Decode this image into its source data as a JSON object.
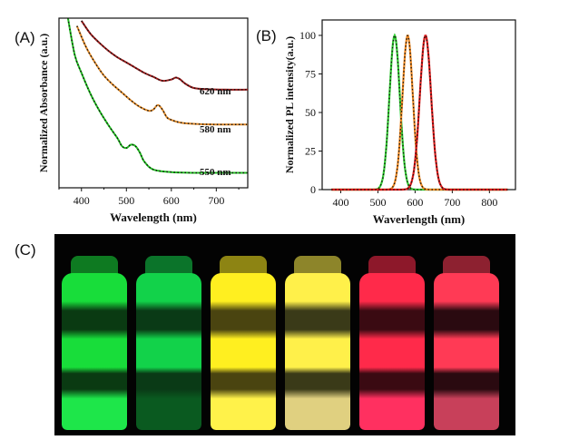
{
  "panels": {
    "a_label": "(A)",
    "b_label": "(B)",
    "c_label": "(C)"
  },
  "chart_data": [
    {
      "type": "line",
      "panel": "A",
      "xlabel": "Wavelength (nm)",
      "ylabel": "Normalized Absorbance (a.u.)",
      "xlim": [
        350,
        770
      ],
      "xticks": [
        400,
        500,
        600,
        700
      ],
      "yticks_shown": false,
      "series": [
        {
          "label": "620 nm",
          "color": "#9b1b1b",
          "x": [
            400,
            420,
            440,
            460,
            480,
            500,
            520,
            540,
            560,
            580,
            600,
            610,
            620,
            630,
            650,
            680,
            720,
            770
          ],
          "y": [
            1.48,
            1.38,
            1.31,
            1.25,
            1.2,
            1.16,
            1.12,
            1.08,
            1.05,
            1.02,
            1.03,
            1.045,
            1.03,
            1.0,
            0.965,
            0.955,
            0.952,
            0.952
          ]
        },
        {
          "label": "580 nm",
          "color": "#e08a2a",
          "x": [
            390,
            410,
            430,
            450,
            470,
            490,
            510,
            530,
            550,
            560,
            570,
            580,
            590,
            600,
            620,
            650,
            700,
            770
          ],
          "y": [
            1.44,
            1.28,
            1.16,
            1.06,
            0.99,
            0.93,
            0.87,
            0.82,
            0.79,
            0.8,
            0.835,
            0.8,
            0.74,
            0.72,
            0.7,
            0.69,
            0.685,
            0.685
          ]
        },
        {
          "label": "550 nm",
          "color": "#22c022",
          "x": [
            370,
            385,
            400,
            420,
            440,
            460,
            480,
            490,
            500,
            510,
            520,
            530,
            540,
            560,
            600,
            650,
            700,
            770
          ],
          "y": [
            1.5,
            1.22,
            1.08,
            0.92,
            0.79,
            0.68,
            0.58,
            0.52,
            0.505,
            0.53,
            0.52,
            0.47,
            0.4,
            0.34,
            0.32,
            0.315,
            0.315,
            0.315
          ]
        }
      ]
    },
    {
      "type": "line",
      "panel": "B",
      "xlabel": "Waverlength (nm)",
      "ylabel": "Normalized PL intensity(a.u.)",
      "xlim": [
        350,
        870
      ],
      "ylim": [
        0,
        110
      ],
      "xticks": [
        400,
        500,
        600,
        700,
        800
      ],
      "yticks": [
        0,
        25,
        50,
        75,
        100
      ],
      "series": [
        {
          "color": "#33cc33",
          "peak_nm": 545,
          "fwhm_nm": 33,
          "peak_value": 100
        },
        {
          "color": "#ee8822",
          "peak_nm": 580,
          "fwhm_nm": 33,
          "peak_value": 100
        },
        {
          "color": "#dd1a1a",
          "peak_nm": 628,
          "fwhm_nm": 36,
          "peak_value": 100
        }
      ]
    }
  ],
  "photo": {
    "vials": [
      {
        "top_color": "#18dd3a",
        "bottom_color": "#1ee64a",
        "band_color": "#0a3a12"
      },
      {
        "top_color": "#12d24a",
        "bottom_color": "#0a5a20",
        "band_color": "#0a3a16"
      },
      {
        "top_color": "#ffef20",
        "bottom_color": "#fff24a",
        "band_color": "#4a4410"
      },
      {
        "top_color": "#fff04a",
        "bottom_color": "#e0d080",
        "band_color": "#3a3a18"
      },
      {
        "top_color": "#ff2a4a",
        "bottom_color": "#ff3060",
        "band_color": "#3a0a12"
      },
      {
        "top_color": "#ff3a55",
        "bottom_color": "#c8405a",
        "band_color": "#2a0a10"
      }
    ]
  }
}
